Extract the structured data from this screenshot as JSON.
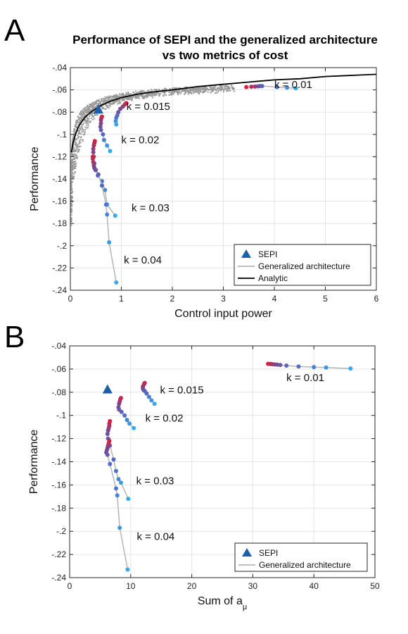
{
  "panels": [
    {
      "letter": "A"
    },
    {
      "letter": "B"
    }
  ],
  "chart_data": [
    {
      "type": "scatter",
      "title": "Performance of SEPI and the generalized architecture vs two metrics of cost",
      "title_lines": [
        "Performance of SEPI and the generalized architecture",
        "vs two metrics of cost"
      ],
      "xlabel": "Control input power",
      "ylabel": "Performance",
      "xlim": [
        0,
        6
      ],
      "ylim": [
        -0.24,
        -0.04
      ],
      "xticks": [
        0,
        1,
        2,
        3,
        4,
        5,
        6
      ],
      "yticks": [
        -0.24,
        -0.22,
        -0.2,
        -0.18,
        -0.16,
        -0.14,
        -0.12,
        -0.1,
        -0.08,
        -0.06,
        -0.04
      ],
      "grid": true,
      "legend_position": "bottom-right",
      "legend": [
        {
          "label": "SEPI",
          "kind": "triangle",
          "color": "#1f5fa8"
        },
        {
          "label": "Generalized architecture",
          "kind": "line",
          "color": "#b5b5b5"
        },
        {
          "label": "Analytic",
          "kind": "line",
          "color": "#000000"
        }
      ],
      "sepi": {
        "x": 0.55,
        "y": -0.078
      },
      "analytic": {
        "x": [
          0.02,
          0.05,
          0.1,
          0.15,
          0.2,
          0.3,
          0.4,
          0.5,
          0.6,
          0.8,
          1.0,
          1.3,
          1.6,
          2.0,
          2.5,
          3.0,
          3.5,
          4.0,
          4.5,
          5.0,
          5.5,
          6.0
        ],
        "y": [
          -0.116,
          -0.108,
          -0.1,
          -0.094,
          -0.09,
          -0.084,
          -0.08,
          -0.077,
          -0.074,
          -0.07,
          -0.067,
          -0.064,
          -0.062,
          -0.06,
          -0.057,
          -0.055,
          -0.053,
          -0.051,
          -0.05,
          -0.048,
          -0.047,
          -0.046
        ]
      },
      "cloud": {
        "color": "#9a9a9a"
      },
      "series": [
        {
          "k_label": "k = 0.01",
          "label_at": {
            "x": 4.0,
            "y": -0.0585
          },
          "x": [
            3.45,
            3.55,
            3.62,
            3.68,
            3.72,
            3.76,
            4.05,
            4.25,
            4.42
          ],
          "y": [
            -0.0575,
            -0.0572,
            -0.057,
            -0.0568,
            -0.0566,
            -0.0565,
            -0.0575,
            -0.058,
            -0.0585
          ]
        },
        {
          "k_label": "k = 0.015",
          "label_at": {
            "x": 1.1,
            "y": -0.078
          },
          "x": [
            1.1,
            1.07,
            1.03,
            0.98,
            0.94,
            0.92,
            0.9,
            0.89,
            0.9
          ],
          "y": [
            -0.072,
            -0.073,
            -0.075,
            -0.077,
            -0.08,
            -0.083,
            -0.085,
            -0.088,
            -0.091
          ]
        },
        {
          "k_label": "k = 0.02",
          "label_at": {
            "x": 1.0,
            "y": -0.108
          },
          "x": [
            0.62,
            0.61,
            0.6,
            0.6,
            0.59,
            0.6,
            0.64,
            0.66,
            0.72,
            0.78
          ],
          "y": [
            -0.084,
            -0.085,
            -0.087,
            -0.09,
            -0.093,
            -0.096,
            -0.1,
            -0.105,
            -0.11,
            -0.115
          ]
        },
        {
          "k_label": "k = 0.03",
          "label_at": {
            "x": 1.2,
            "y": -0.169
          },
          "x": [
            0.48,
            0.47,
            0.46,
            0.45,
            0.45,
            0.46,
            0.47,
            0.49,
            0.54,
            0.62,
            0.68,
            0.72,
            0.88
          ],
          "y": [
            -0.106,
            -0.108,
            -0.11,
            -0.113,
            -0.116,
            -0.12,
            -0.126,
            -0.132,
            -0.137,
            -0.142,
            -0.15,
            -0.163,
            -0.173
          ]
        },
        {
          "k_label": "k = 0.04",
          "label_at": {
            "x": 1.05,
            "y": -0.216
          },
          "x": [
            0.44,
            0.44,
            0.45,
            0.46,
            0.47,
            0.5,
            0.55,
            0.62,
            0.7,
            0.72,
            0.76,
            0.9
          ],
          "y": [
            -0.12,
            -0.122,
            -0.125,
            -0.128,
            -0.13,
            -0.132,
            -0.136,
            -0.146,
            -0.163,
            -0.172,
            -0.197,
            -0.233
          ]
        }
      ]
    },
    {
      "type": "scatter",
      "title": "",
      "xlabel": "Sum of a",
      "xlabel_sub": "μ",
      "ylabel": "Performance",
      "xlim": [
        0,
        50
      ],
      "ylim": [
        -0.24,
        -0.04
      ],
      "xticks": [
        0,
        10,
        20,
        30,
        40,
        50
      ],
      "yticks": [
        -0.24,
        -0.22,
        -0.2,
        -0.18,
        -0.16,
        -0.14,
        -0.12,
        -0.1,
        -0.08,
        -0.06,
        -0.04
      ],
      "grid": true,
      "legend_position": "bottom-right",
      "legend": [
        {
          "label": "SEPI",
          "kind": "triangle",
          "color": "#1f5fa8"
        },
        {
          "label": "Generalized architecture",
          "kind": "line",
          "color": "#b5b5b5"
        }
      ],
      "sepi": {
        "x": 6.2,
        "y": -0.078
      },
      "series": [
        {
          "k_label": "k = 0.01",
          "label_at": {
            "x": 35.5,
            "y": -0.0705
          },
          "x": [
            32.5,
            32.9,
            33.2,
            33.6,
            34.0,
            34.5,
            35.5,
            37.5,
            40.0,
            42.0,
            46.0
          ],
          "y": [
            -0.0555,
            -0.0556,
            -0.0558,
            -0.056,
            -0.0562,
            -0.0565,
            -0.057,
            -0.0578,
            -0.0583,
            -0.0587,
            -0.0595
          ]
        },
        {
          "k_label": "k = 0.015",
          "label_at": {
            "x": 14.8,
            "y": -0.081
          },
          "x": [
            12.3,
            12.2,
            12.0,
            12.0,
            12.1,
            12.3,
            12.6,
            13.0,
            13.4,
            13.9
          ],
          "y": [
            -0.072,
            -0.073,
            -0.075,
            -0.077,
            -0.078,
            -0.079,
            -0.081,
            -0.084,
            -0.087,
            -0.09
          ]
        },
        {
          "k_label": "k = 0.02",
          "label_at": {
            "x": 12.4,
            "y": -0.1055
          },
          "x": [
            8.4,
            8.3,
            8.2,
            8.1,
            8.0,
            8.1,
            8.5,
            9.0,
            9.4,
            9.8,
            10.5
          ],
          "y": [
            -0.085,
            -0.086,
            -0.088,
            -0.09,
            -0.093,
            -0.095,
            -0.097,
            -0.1,
            -0.104,
            -0.107,
            -0.111
          ]
        },
        {
          "k_label": "k = 0.03",
          "label_at": {
            "x": 10.9,
            "y": -0.1595
          },
          "x": [
            6.6,
            6.5,
            6.5,
            6.4,
            6.3,
            6.2,
            6.3,
            6.6,
            7.2,
            7.6,
            8.0,
            8.4,
            9.6
          ],
          "y": [
            -0.105,
            -0.107,
            -0.109,
            -0.111,
            -0.113,
            -0.116,
            -0.12,
            -0.126,
            -0.138,
            -0.148,
            -0.155,
            -0.158,
            -0.172
          ]
        },
        {
          "k_label": "k = 0.04",
          "label_at": {
            "x": 11.0,
            "y": -0.2075
          },
          "x": [
            6.5,
            6.4,
            6.3,
            6.2,
            6.1,
            6.0,
            6.2,
            6.6,
            7.6,
            7.8,
            8.2,
            9.5
          ],
          "y": [
            -0.122,
            -0.124,
            -0.126,
            -0.128,
            -0.13,
            -0.132,
            -0.134,
            -0.142,
            -0.163,
            -0.169,
            -0.197,
            -0.233
          ]
        }
      ]
    }
  ]
}
